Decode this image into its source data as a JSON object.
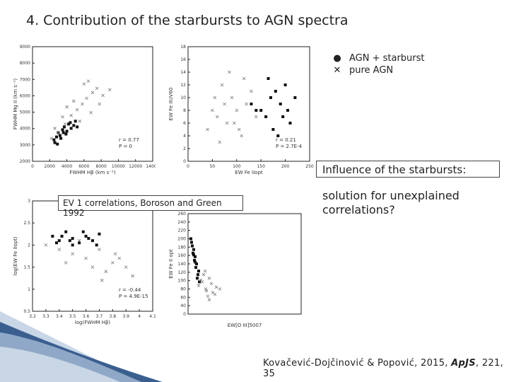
{
  "title": "4. Contribution of the starbursts to AGN spectra",
  "legend": {
    "agn_sb": "AGN + starburst",
    "pure_agn": "pure AGN"
  },
  "influence": "Influence of the starbursts:",
  "solution": "solution for unexplained correlations?",
  "ev1_label": "EV 1 correlations, Boroson and Green 1992",
  "citation": {
    "authors": "Kovačević-Dojčinović & Popović, 2015, ",
    "journal": "ApJS",
    "rest": ", 221, 35"
  },
  "colors": {
    "agn_sb": "#111111",
    "pure_agn": "#777777",
    "deco_blue": "#3a5f8f"
  },
  "chart_data": [
    {
      "type": "scatter",
      "title": "",
      "xlabel": "FWHM Hβ (km s⁻¹)",
      "ylabel": "FWHM Mg II (km s⁻¹)",
      "xlim": [
        0,
        14000
      ],
      "ylim": [
        1000,
        9000
      ],
      "xticks": [
        "0",
        "2000",
        "4000",
        "6000",
        "8000",
        "10000",
        "12000",
        "14000"
      ],
      "yticks": [
        "2000",
        "3000",
        "4000",
        "5000",
        "6000",
        "7000",
        "8000",
        "9000"
      ],
      "annotations": [
        "r = 0.77",
        "P = 0"
      ],
      "series": [
        {
          "name": "AGN + starburst",
          "x": [
            2500,
            2800,
            3000,
            3200,
            3500,
            3700,
            4000,
            4200,
            4500,
            4800,
            5000,
            2600,
            3300,
            3900,
            4400,
            5200,
            2900,
            3600
          ],
          "y": [
            2500,
            2700,
            3000,
            2800,
            3200,
            3400,
            3100,
            3600,
            3300,
            3500,
            3800,
            2300,
            2600,
            2900,
            3700,
            3400,
            2200,
            3000
          ]
        },
        {
          "name": "pure AGN",
          "x": [
            2200,
            3000,
            3800,
            4500,
            5200,
            5800,
            6300,
            7000,
            7500,
            8200,
            9000,
            4000,
            6000,
            6800,
            5500,
            4800,
            3500,
            7800,
            2600,
            6500
          ],
          "y": [
            2600,
            3000,
            3600,
            4200,
            4600,
            5000,
            5400,
            5800,
            6100,
            5600,
            6000,
            4800,
            6400,
            4400,
            3800,
            5200,
            4100,
            5000,
            3300,
            6600
          ]
        }
      ]
    },
    {
      "type": "scatter",
      "title": "",
      "xlabel": "EW Fe IIopt",
      "ylabel": "EW Fe IIUV60",
      "xlim": [
        0,
        250
      ],
      "ylim": [
        0,
        18
      ],
      "xticks": [
        "0",
        "50",
        "100",
        "150",
        "200",
        "250"
      ],
      "yticks": [
        "0",
        "2",
        "4",
        "6",
        "8",
        "10",
        "12",
        "14",
        "16",
        "18"
      ],
      "annotations": [
        "r = 0.21",
        "P = 2.7E-4"
      ],
      "series": [
        {
          "name": "AGN + starburst",
          "x": [
            150,
            170,
            190,
            160,
            200,
            210,
            180,
            140,
            175,
            220,
            195,
            165,
            185,
            130,
            205
          ],
          "y": [
            8,
            10,
            9,
            7,
            12,
            6,
            11,
            8,
            5,
            10,
            7,
            13,
            4,
            9,
            8
          ]
        },
        {
          "name": "pure AGN",
          "x": [
            40,
            60,
            80,
            100,
            120,
            70,
            90,
            110,
            50,
            130,
            85,
            65,
            95,
            140,
            75,
            105,
            55,
            115
          ],
          "y": [
            5,
            7,
            6,
            8,
            9,
            12,
            10,
            4,
            8,
            11,
            14,
            3,
            6,
            7,
            9,
            5,
            10,
            13
          ]
        }
      ]
    },
    {
      "type": "scatter",
      "title": "",
      "xlabel": "log(FWHM Hβ)",
      "ylabel": "log(EW Fe IIopt)",
      "xlim": [
        3.2,
        4.1
      ],
      "ylim": [
        0.5,
        3
      ],
      "xticks": [
        "3.2",
        "3.3",
        "3.4",
        "3.5",
        "3.6",
        "3.7",
        "3.8",
        "3.9",
        "4",
        "4.1"
      ],
      "yticks": [
        "0.5",
        "1",
        "1.5",
        "2",
        "2.5",
        "3"
      ],
      "annotations": [
        "r = -0.44",
        "P = 4.9E-15"
      ],
      "series": [
        {
          "name": "AGN + starburst",
          "x": [
            3.35,
            3.4,
            3.45,
            3.5,
            3.55,
            3.6,
            3.65,
            3.7,
            3.5,
            3.42,
            3.58,
            3.48,
            3.62,
            3.38,
            3.68
          ],
          "y": [
            2.2,
            2.1,
            2.3,
            2.15,
            2.05,
            2.2,
            2.1,
            2.25,
            2.0,
            2.2,
            2.3,
            2.1,
            2.15,
            2.05,
            2.0
          ]
        },
        {
          "name": "pure AGN",
          "x": [
            3.3,
            3.4,
            3.5,
            3.6,
            3.7,
            3.8,
            3.9,
            3.55,
            3.65,
            3.75,
            3.85,
            3.45,
            3.95,
            3.72,
            3.82
          ],
          "y": [
            2.0,
            1.9,
            1.8,
            1.7,
            1.9,
            1.6,
            1.5,
            2.1,
            1.5,
            1.4,
            1.7,
            1.6,
            1.3,
            1.2,
            1.8
          ]
        }
      ]
    },
    {
      "type": "scatter",
      "title": "",
      "xlabel": "EW[O III]5007",
      "ylabel": "EW Fe II opt",
      "xlim": [
        0,
        160
      ],
      "ylim": [
        0,
        280
      ],
      "xticks": [],
      "yticks": [
        "0",
        "40",
        "60",
        "80",
        "100",
        "120",
        "140",
        "160",
        "180",
        "200",
        "220",
        "240",
        "260"
      ],
      "annotations": [],
      "series": [
        {
          "name": "AGN + starburst",
          "x": [
            5,
            8,
            10,
            12,
            15,
            6,
            9,
            11,
            14,
            7,
            13,
            4,
            16,
            10,
            8
          ],
          "y": [
            200,
            180,
            160,
            140,
            120,
            190,
            150,
            130,
            110,
            170,
            100,
            210,
            90,
            145,
            165
          ]
        },
        {
          "name": "pure AGN",
          "x": [
            15,
            20,
            25,
            30,
            35,
            40,
            22,
            28,
            33,
            18,
            26,
            38,
            45,
            24,
            30
          ],
          "y": [
            80,
            90,
            70,
            100,
            60,
            75,
            110,
            50,
            85,
            95,
            65,
            55,
            70,
            120,
            40
          ]
        }
      ]
    }
  ]
}
